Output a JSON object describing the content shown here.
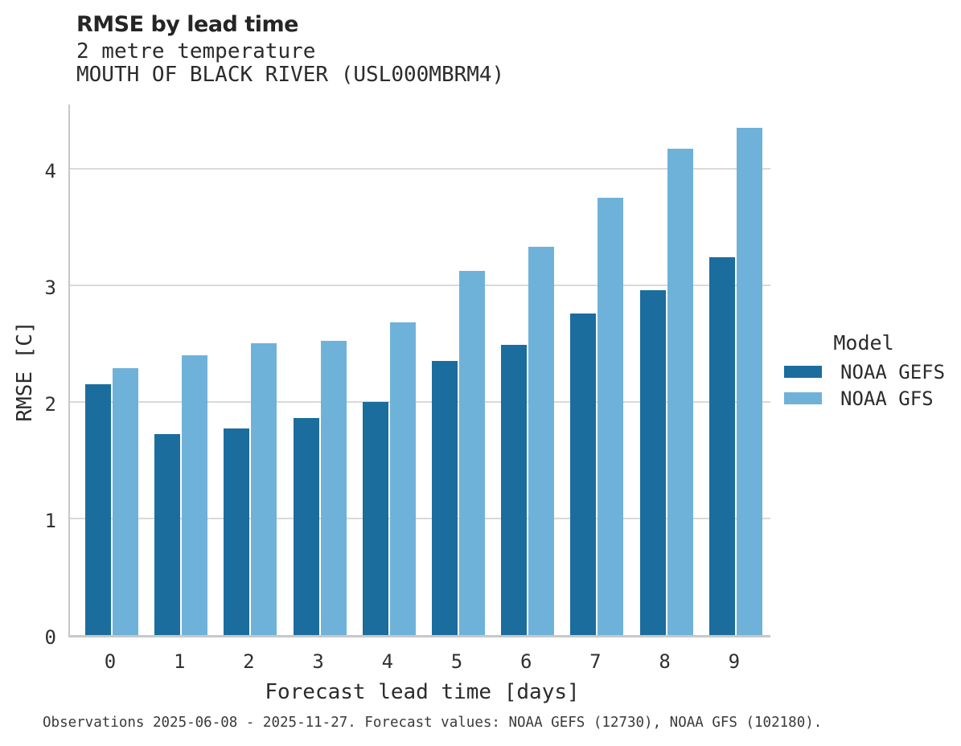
{
  "header": {
    "title": "RMSE by lead time",
    "subtitle_line1": "2 metre temperature",
    "subtitle_line2": "MOUTH OF BLACK RIVER (USL000MBRM4)"
  },
  "legend": {
    "title": "Model",
    "entries": [
      {
        "label": "NOAA GEFS",
        "color": "#1b6d9e"
      },
      {
        "label": "NOAA GFS",
        "color": "#6fb2d9"
      }
    ]
  },
  "footer": {
    "caption": "Observations 2025-06-08 - 2025-11-27. Forecast values: NOAA GEFS (12730), NOAA GFS (102180)."
  },
  "style": {
    "grid_color": "#d9d9d9",
    "spine_color": "#c8c8c8",
    "background": "#ffffff"
  },
  "chart_data": {
    "type": "bar",
    "title": "RMSE by lead time",
    "subtitle": "2 metre temperature — MOUTH OF BLACK RIVER (USL000MBRM4)",
    "xlabel": "Forecast lead time [days]",
    "ylabel": "RMSE [C]",
    "categories": [
      "0",
      "1",
      "2",
      "3",
      "4",
      "5",
      "6",
      "7",
      "8",
      "9"
    ],
    "series": [
      {
        "name": "NOAA GEFS",
        "color": "#1b6d9e",
        "values": [
          2.15,
          1.72,
          1.77,
          1.86,
          2.0,
          2.35,
          2.49,
          2.76,
          2.96,
          3.24
        ]
      },
      {
        "name": "NOAA GFS",
        "color": "#6fb2d9",
        "values": [
          2.29,
          2.4,
          2.5,
          2.52,
          2.68,
          3.12,
          3.33,
          3.75,
          4.17,
          4.35
        ]
      }
    ],
    "ylim": [
      0,
      4.57
    ],
    "yticks": [
      0,
      1,
      2,
      3,
      4
    ],
    "grid": "horizontal",
    "legend_position": "right"
  }
}
